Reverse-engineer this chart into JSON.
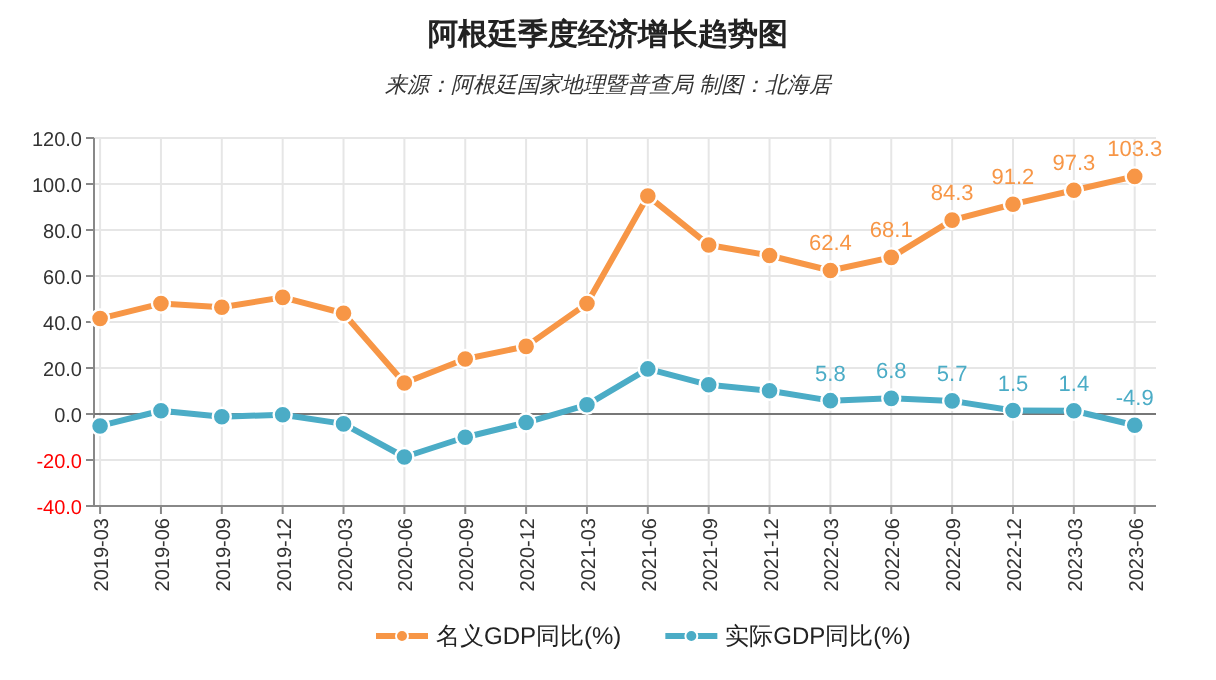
{
  "chart_data": {
    "type": "line",
    "title": "阿根廷季度经济增长趋势图",
    "subtitle": "来源：阿根廷国家地理暨普查局 制图：北海居",
    "categories": [
      "2019-03",
      "2019-06",
      "2019-09",
      "2019-12",
      "2020-03",
      "2020-06",
      "2020-09",
      "2020-12",
      "2021-03",
      "2021-06",
      "2021-09",
      "2021-12",
      "2022-03",
      "2022-06",
      "2022-09",
      "2022-12",
      "2023-03",
      "2023-06"
    ],
    "series": [
      {
        "name": "名义GDP同比(%)",
        "color": "#f79646",
        "values": [
          41.5,
          48,
          46.4,
          50.7,
          43.8,
          13.5,
          23.9,
          29.4,
          48,
          94.8,
          73.5,
          68.9,
          62.4,
          68.1,
          84.3,
          91.2,
          97.3,
          103.3
        ],
        "value_labels": [
          null,
          null,
          null,
          null,
          null,
          null,
          null,
          null,
          null,
          null,
          null,
          null,
          "62.4",
          "68.1",
          "84.3",
          "91.2",
          "97.3",
          "103.3"
        ]
      },
      {
        "name": "实际GDP同比(%)",
        "color": "#4bacc6",
        "values": [
          -5.2,
          1.4,
          -1.2,
          -0.3,
          -4.3,
          -18.7,
          -10.1,
          -3.7,
          4.0,
          19.6,
          12.7,
          10.1,
          5.8,
          6.8,
          5.7,
          1.5,
          1.4,
          -4.9
        ],
        "value_labels": [
          null,
          null,
          null,
          null,
          null,
          null,
          null,
          null,
          null,
          null,
          null,
          null,
          "5.8",
          "6.8",
          "5.7",
          "1.5",
          "1.4",
          "-4.9"
        ]
      }
    ],
    "ylim": [
      -40,
      120
    ],
    "yticks": [
      {
        "value": -40,
        "label": "-40.0"
      },
      {
        "value": -20,
        "label": "-20.0"
      },
      {
        "value": 0,
        "label": "0.0"
      },
      {
        "value": 20,
        "label": "20.0"
      },
      {
        "value": 40,
        "label": "40.0"
      },
      {
        "value": 60,
        "label": "60.0"
      },
      {
        "value": 80,
        "label": "80.0"
      },
      {
        "value": 100,
        "label": "100.0"
      },
      {
        "value": 120,
        "label": "120.0"
      }
    ],
    "grid": true,
    "legend": "bottom",
    "marker": "circle",
    "line_style": "solid"
  }
}
